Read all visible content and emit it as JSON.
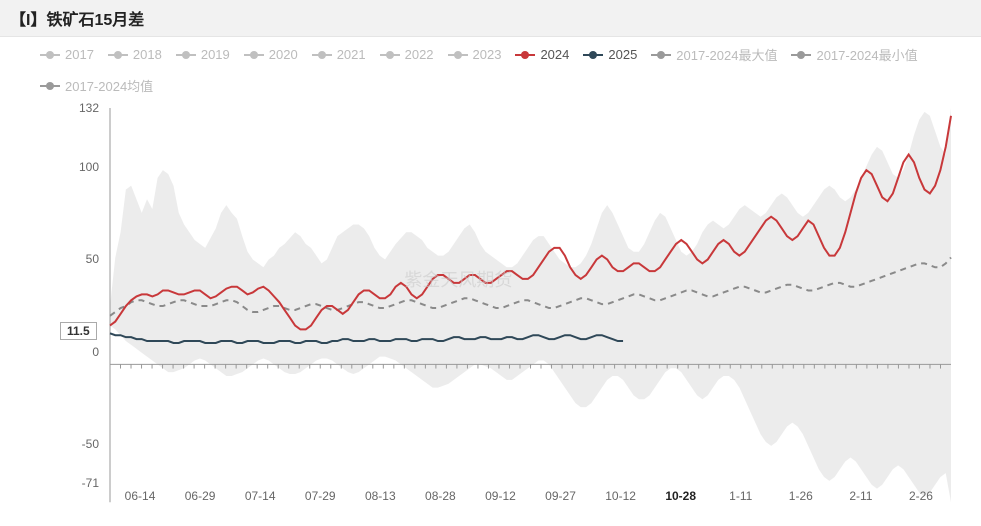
{
  "title": "【I】铁矿石15月差",
  "watermark": "紫金天风期货",
  "chip_value": "11.5",
  "chip_y": 11.5,
  "highlight_x_label": "10-28",
  "colors": {
    "inactive": "#c0c0c0",
    "s2024": "#c8383a",
    "s2025": "#2f4858",
    "mean": "#8a8a8a",
    "band": "#dcdcdc",
    "axis": "#999999",
    "grid": "#e6e6e6",
    "background": "#ffffff"
  },
  "typography": {
    "title_fontsize": 16,
    "legend_fontsize": 13,
    "tick_fontsize": 12
  },
  "legend": [
    {
      "label": "2017",
      "color": "#c0c0c0",
      "style": "dot",
      "inactive": true
    },
    {
      "label": "2018",
      "color": "#c0c0c0",
      "style": "dot",
      "inactive": true
    },
    {
      "label": "2019",
      "color": "#c0c0c0",
      "style": "dot",
      "inactive": true
    },
    {
      "label": "2020",
      "color": "#c0c0c0",
      "style": "dot",
      "inactive": true
    },
    {
      "label": "2021",
      "color": "#c0c0c0",
      "style": "dot",
      "inactive": true
    },
    {
      "label": "2022",
      "color": "#c0c0c0",
      "style": "dot",
      "inactive": true
    },
    {
      "label": "2023",
      "color": "#c0c0c0",
      "style": "dot",
      "inactive": true
    },
    {
      "label": "2024",
      "color": "#c8383a",
      "style": "dot",
      "inactive": false
    },
    {
      "label": "2025",
      "color": "#2f4858",
      "style": "dot",
      "inactive": false
    },
    {
      "label": "2017-2024最大值",
      "color": "#9a9a9a",
      "style": "dot",
      "inactive": true
    },
    {
      "label": "2017-2024最小值",
      "color": "#9a9a9a",
      "style": "dot",
      "inactive": true
    },
    {
      "label": "2017-2024均值",
      "color": "#9a9a9a",
      "style": "dot",
      "inactive": true
    }
  ],
  "chart": {
    "type": "line+band",
    "ylim": [
      -71,
      132
    ],
    "yticks": [
      -71,
      -50,
      0,
      50,
      100,
      132
    ],
    "x_labels": [
      "06-14",
      "06-29",
      "07-14",
      "07-29",
      "08-13",
      "08-28",
      "09-12",
      "09-27",
      "10-12",
      "10-28",
      "1-11",
      "1-26",
      "2-11",
      "2-26"
    ],
    "x_highlight_idx": 9,
    "x_domain": [
      0,
      160
    ],
    "zero_line": 0,
    "line_width": 2,
    "band_opacity": 0.55,
    "series": {
      "band_upper": [
        30,
        55,
        68,
        90,
        92,
        85,
        78,
        85,
        80,
        96,
        100,
        98,
        92,
        78,
        72,
        68,
        64,
        62,
        60,
        65,
        70,
        78,
        82,
        78,
        75,
        66,
        58,
        54,
        52,
        50,
        54,
        56,
        60,
        62,
        65,
        68,
        66,
        62,
        60,
        56,
        52,
        54,
        60,
        66,
        68,
        70,
        72,
        72,
        70,
        66,
        60,
        56,
        54,
        58,
        62,
        65,
        68,
        68,
        66,
        64,
        60,
        58,
        56,
        56,
        58,
        62,
        66,
        70,
        72,
        68,
        62,
        58,
        56,
        54,
        52,
        50,
        50,
        52,
        56,
        60,
        64,
        66,
        66,
        62,
        58,
        54,
        52,
        50,
        50,
        52,
        56,
        62,
        70,
        78,
        82,
        78,
        72,
        66,
        60,
        58,
        58,
        62,
        68,
        74,
        78,
        76,
        70,
        64,
        58,
        56,
        58,
        62,
        68,
        72,
        74,
        72,
        70,
        72,
        76,
        80,
        82,
        80,
        78,
        76,
        78,
        82,
        86,
        88,
        86,
        82,
        78,
        76,
        78,
        82,
        86,
        90,
        92,
        90,
        86,
        84,
        86,
        90,
        96,
        102,
        108,
        112,
        110,
        104,
        98,
        96,
        100,
        108,
        118,
        126,
        130,
        128,
        120,
        112,
        108,
        132
      ],
      "band_lower": [
        20,
        18,
        15,
        12,
        10,
        8,
        6,
        4,
        2,
        0,
        -2,
        -4,
        -4,
        -3,
        -2,
        0,
        2,
        3,
        2,
        0,
        -2,
        -4,
        -6,
        -6,
        -5,
        -4,
        -2,
        0,
        2,
        3,
        2,
        0,
        -2,
        -4,
        -5,
        -5,
        -4,
        -2,
        0,
        2,
        3,
        3,
        2,
        0,
        -2,
        -4,
        -5,
        -4,
        -2,
        0,
        2,
        4,
        4,
        3,
        2,
        0,
        -2,
        -4,
        -6,
        -8,
        -10,
        -12,
        -12,
        -11,
        -10,
        -8,
        -6,
        -4,
        -2,
        0,
        0,
        -1,
        -2,
        -4,
        -6,
        -8,
        -8,
        -6,
        -4,
        -2,
        0,
        2,
        2,
        0,
        -4,
        -8,
        -12,
        -16,
        -20,
        -22,
        -22,
        -20,
        -16,
        -12,
        -8,
        -6,
        -6,
        -8,
        -12,
        -16,
        -18,
        -18,
        -16,
        -12,
        -8,
        -4,
        -2,
        -2,
        -4,
        -8,
        -12,
        -16,
        -18,
        -16,
        -12,
        -8,
        -6,
        -6,
        -8,
        -12,
        -18,
        -24,
        -30,
        -36,
        -40,
        -42,
        -40,
        -36,
        -32,
        -30,
        -32,
        -36,
        -42,
        -48,
        -54,
        -58,
        -60,
        -58,
        -54,
        -50,
        -48,
        -50,
        -54,
        -58,
        -62,
        -64,
        -62,
        -58,
        -54,
        -52,
        -54,
        -58,
        -62,
        -66,
        -68,
        -66,
        -62,
        -58,
        -56,
        -71
      ],
      "mean": [
        25,
        27,
        29,
        30,
        32,
        33,
        33,
        32,
        31,
        30,
        30,
        31,
        32,
        33,
        33,
        32,
        31,
        30,
        30,
        30,
        31,
        32,
        33,
        33,
        32,
        30,
        28,
        27,
        27,
        28,
        29,
        30,
        30,
        29,
        28,
        28,
        29,
        30,
        31,
        31,
        30,
        29,
        28,
        28,
        29,
        30,
        31,
        32,
        32,
        31,
        30,
        29,
        29,
        30,
        31,
        32,
        33,
        33,
        32,
        31,
        30,
        29,
        29,
        30,
        31,
        32,
        33,
        34,
        34,
        33,
        32,
        31,
        30,
        29,
        29,
        30,
        31,
        32,
        33,
        33,
        32,
        31,
        30,
        29,
        29,
        30,
        31,
        32,
        33,
        34,
        34,
        33,
        32,
        31,
        31,
        32,
        33,
        34,
        35,
        36,
        36,
        35,
        34,
        33,
        33,
        34,
        35,
        36,
        37,
        38,
        38,
        37,
        36,
        35,
        35,
        36,
        37,
        38,
        39,
        40,
        40,
        39,
        38,
        37,
        37,
        38,
        39,
        40,
        41,
        41,
        40,
        39,
        38,
        38,
        39,
        40,
        41,
        42,
        42,
        41,
        40,
        40,
        41,
        42,
        43,
        44,
        45,
        46,
        47,
        48,
        49,
        50,
        51,
        52,
        52,
        51,
        50,
        50,
        52,
        55
      ],
      "s2024": [
        20,
        22,
        26,
        30,
        33,
        35,
        36,
        36,
        35,
        36,
        38,
        38,
        37,
        36,
        36,
        37,
        38,
        38,
        36,
        34,
        35,
        37,
        39,
        40,
        40,
        38,
        36,
        37,
        39,
        40,
        38,
        35,
        32,
        28,
        24,
        20,
        18,
        18,
        20,
        24,
        28,
        30,
        30,
        28,
        26,
        28,
        32,
        36,
        38,
        38,
        36,
        34,
        34,
        36,
        40,
        42,
        40,
        36,
        34,
        36,
        40,
        44,
        46,
        46,
        44,
        42,
        42,
        44,
        46,
        46,
        44,
        42,
        42,
        44,
        46,
        48,
        48,
        46,
        44,
        44,
        46,
        50,
        54,
        58,
        60,
        60,
        56,
        50,
        46,
        44,
        46,
        50,
        54,
        56,
        54,
        50,
        48,
        48,
        50,
        52,
        52,
        50,
        48,
        48,
        50,
        54,
        58,
        62,
        64,
        62,
        58,
        54,
        52,
        54,
        58,
        62,
        64,
        62,
        58,
        56,
        58,
        62,
        66,
        70,
        74,
        76,
        74,
        70,
        66,
        64,
        66,
        70,
        74,
        72,
        66,
        60,
        56,
        56,
        60,
        68,
        78,
        88,
        96,
        100,
        98,
        92,
        86,
        84,
        88,
        96,
        104,
        108,
        104,
        96,
        90,
        88,
        92,
        100,
        112,
        128
      ],
      "s2025": [
        16,
        15,
        15,
        14,
        14,
        13,
        13,
        12,
        12,
        12,
        12,
        12,
        11,
        11,
        12,
        12,
        12,
        12,
        11,
        11,
        11,
        12,
        12,
        12,
        11,
        11,
        12,
        12,
        12,
        11,
        11,
        11,
        12,
        12,
        12,
        11,
        11,
        12,
        12,
        12,
        11,
        11,
        12,
        12,
        13,
        13,
        12,
        12,
        12,
        13,
        13,
        12,
        12,
        12,
        13,
        13,
        13,
        12,
        12,
        13,
        13,
        13,
        12,
        12,
        13,
        14,
        14,
        13,
        13,
        13,
        14,
        14,
        13,
        13,
        13,
        14,
        14,
        13,
        13,
        14,
        15,
        15,
        14,
        13,
        13,
        14,
        15,
        15,
        14,
        13,
        13,
        14,
        15,
        15,
        14,
        13,
        12,
        12
      ]
    }
  }
}
